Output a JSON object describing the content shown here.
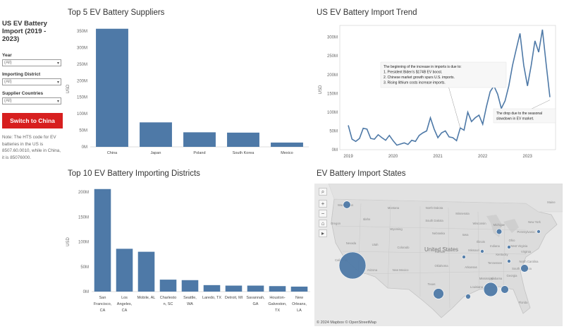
{
  "sidebar": {
    "title": "US EV Battery Import (2019 - 2023)",
    "filters": [
      {
        "label": "Year",
        "value": "(All)"
      },
      {
        "label": "Importing District",
        "value": "(All)"
      },
      {
        "label": "Supplier Countries",
        "value": "(All)"
      }
    ],
    "switch_label": "Switch to China",
    "note": "Note: The HTS code for EV batteries in the US is 8507.60.0010, while in China, it is 85076000.",
    "accent_color": "#d71f1f"
  },
  "bar_color": "#4e79a7",
  "chart_data": [
    {
      "type": "bar",
      "title": "Top 5 EV Battery Suppliers",
      "ylabel": "USD",
      "ylim": [
        0,
        350
      ],
      "yticks": [
        "0M",
        "50M",
        "100M",
        "150M",
        "200M",
        "250M",
        "300M",
        "350M"
      ],
      "categories": [
        "China",
        "Japan",
        "Poland",
        "South Korea",
        "Mexico"
      ],
      "values": [
        357,
        74,
        44,
        43,
        13
      ]
    },
    {
      "type": "line",
      "title": "US EV Battery Import Trend",
      "ylabel": "USD",
      "ylim": [
        0,
        320
      ],
      "yticks": [
        "0M",
        "50M",
        "100M",
        "150M",
        "200M",
        "250M",
        "300M"
      ],
      "xticks": [
        "2019",
        "2020",
        "2021",
        "2022",
        "2023"
      ],
      "x": [
        "2019-01",
        "2019-02",
        "2019-03",
        "2019-04",
        "2019-05",
        "2019-06",
        "2019-07",
        "2019-08",
        "2019-09",
        "2019-10",
        "2019-11",
        "2019-12",
        "2020-01",
        "2020-02",
        "2020-03",
        "2020-04",
        "2020-05",
        "2020-06",
        "2020-07",
        "2020-08",
        "2020-09",
        "2020-10",
        "2020-11",
        "2020-12",
        "2021-01",
        "2021-02",
        "2021-03",
        "2021-04",
        "2021-05",
        "2021-06",
        "2021-07",
        "2021-08",
        "2021-09",
        "2021-10",
        "2021-11",
        "2021-12",
        "2022-01",
        "2022-02",
        "2022-03",
        "2022-04",
        "2022-05",
        "2022-06",
        "2022-07",
        "2022-08",
        "2022-09",
        "2022-10",
        "2022-11",
        "2022-12",
        "2023-01",
        "2023-02",
        "2023-03",
        "2023-04",
        "2023-05",
        "2023-06",
        "2023-07"
      ],
      "values": [
        65,
        28,
        22,
        30,
        57,
        55,
        30,
        28,
        40,
        32,
        25,
        38,
        24,
        12,
        15,
        18,
        14,
        25,
        22,
        38,
        45,
        50,
        85,
        55,
        32,
        45,
        50,
        34,
        32,
        24,
        58,
        52,
        100,
        75,
        85,
        92,
        68,
        115,
        155,
        170,
        148,
        110,
        130,
        170,
        225,
        268,
        310,
        225,
        170,
        225,
        290,
        260,
        320,
        228,
        140
      ],
      "annotations": [
        {
          "lines": [
            "The beginning of the increase in imports is due to:",
            "1. President Biden's $174B EV boost.",
            "2. Chinese market growth spurs U.S. imports.",
            "3. Rising lithium costs increase imports."
          ]
        },
        {
          "lines": [
            "The drop due to the seasonal",
            "slowdown in EV market."
          ]
        }
      ]
    },
    {
      "type": "bar",
      "title": "Top 10 EV Battery Importing Districts",
      "ylabel": "USD",
      "ylim": [
        0,
        200
      ],
      "yticks": [
        "0M",
        "50M",
        "100M",
        "150M",
        "200M"
      ],
      "categories": [
        [
          "San",
          "Francisco,",
          "CA"
        ],
        [
          "Los",
          "Angeles,",
          "CA"
        ],
        [
          "Mobile, AL"
        ],
        [
          "Charlesto",
          "n, SC"
        ],
        [
          "Seattle,",
          "WA"
        ],
        [
          "Laredo, TX"
        ],
        [
          "Detroit, MI"
        ],
        [
          "Savannah,",
          "GA"
        ],
        [
          "Houston-",
          "Galveston,",
          "TX"
        ],
        [
          "New",
          "Orleans,",
          "LA"
        ]
      ],
      "values": [
        206,
        86,
        80,
        24,
        23,
        13,
        12,
        12,
        11,
        10
      ]
    }
  ],
  "map": {
    "title": "EV Battery Import States",
    "attribution": "© 2024 Mapbox  © OpenStreetMap",
    "country_label": "United States",
    "state_labels": [
      "Washington",
      "Oregon",
      "Idaho",
      "Montana",
      "North Dakota",
      "South Dakota",
      "Wyoming",
      "Nebraska",
      "Nevada",
      "Utah",
      "Colorado",
      "Kansas",
      "California",
      "Arizona",
      "New Mexico",
      "Oklahoma",
      "Texas",
      "Minnesota",
      "Iowa",
      "Missouri",
      "Arkansas",
      "Louisiana",
      "Mississippi",
      "Alabama",
      "Georgia",
      "Florida",
      "Illinois",
      "Indiana",
      "Ohio",
      "Kentucky",
      "Tennessee",
      "Michigan",
      "Wisconsin",
      "Pennsylvania",
      "New York",
      "Virginia",
      "North Carolina",
      "South Carolina",
      "Maine",
      "West Virginia"
    ],
    "states": [
      {
        "state": "California",
        "value": 292
      },
      {
        "state": "Washington",
        "value": 23
      },
      {
        "state": "Alabama",
        "value": 80
      },
      {
        "state": "Georgia",
        "value": 44
      },
      {
        "state": "South Carolina",
        "value": 24
      },
      {
        "state": "Louisiana",
        "value": 10
      },
      {
        "state": "Michigan",
        "value": 12
      },
      {
        "state": "Texas",
        "value": 24
      },
      {
        "state": "Tennessee",
        "value": 3
      },
      {
        "state": "Ohio",
        "value": 2
      },
      {
        "state": "New York",
        "value": 1
      },
      {
        "state": "North Carolina",
        "value": 2
      },
      {
        "state": "Mississippi",
        "value": 1
      }
    ],
    "tools": [
      "search-icon",
      "zoom-in-icon",
      "zoom-out-icon",
      "home-icon",
      "play-icon"
    ]
  }
}
